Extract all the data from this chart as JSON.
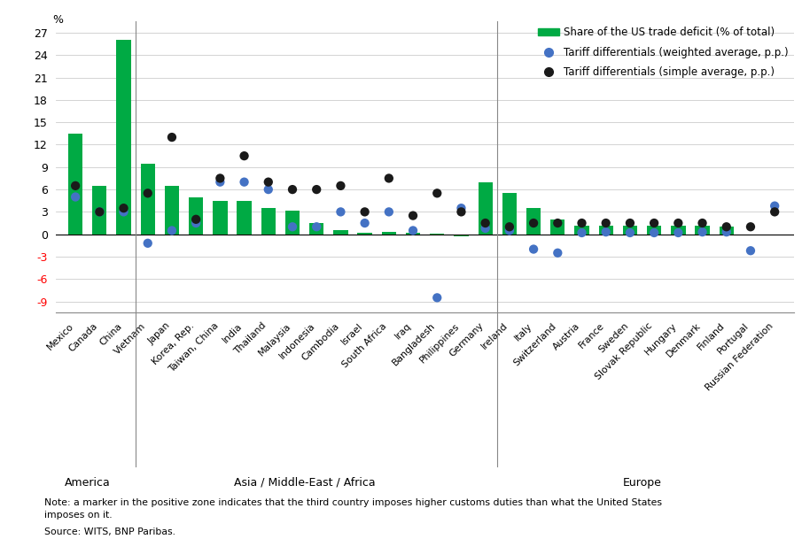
{
  "countries": [
    "Mexico",
    "Canada",
    "China",
    "Vietnam",
    "Japan",
    "Korea, Rep.",
    "Taiwan, China",
    "India",
    "Thailand",
    "Malaysia",
    "Indonesia",
    "Cambodia",
    "Israel",
    "South Africa",
    "Iraq",
    "Bangladesh",
    "Philippines",
    "Germany",
    "Ireland",
    "Italy",
    "Switzerland",
    "Austria",
    "France",
    "Sweden",
    "Slovak Republic",
    "Hungary",
    "Denmark",
    "Finland",
    "Portugal",
    "Russian Federation"
  ],
  "bar_values": [
    13.5,
    6.5,
    26.0,
    9.5,
    6.5,
    5.0,
    4.5,
    4.5,
    3.5,
    3.2,
    1.5,
    0.5,
    0.2,
    0.3,
    0.15,
    0.1,
    -0.3,
    7.0,
    5.5,
    3.5,
    2.0,
    1.2,
    1.2,
    1.2,
    1.2,
    1.2,
    1.2,
    1.0,
    -0.2,
    -0.2
  ],
  "weighted_avg": [
    5.0,
    3.0,
    3.0,
    -1.2,
    0.5,
    1.5,
    7.0,
    7.0,
    6.0,
    1.0,
    1.0,
    3.0,
    1.5,
    3.0,
    0.5,
    -8.5,
    3.5,
    0.8,
    0.5,
    -2.0,
    -2.5,
    0.2,
    0.3,
    0.2,
    0.2,
    0.2,
    0.3,
    0.3,
    -2.2,
    3.8
  ],
  "simple_avg": [
    6.5,
    3.0,
    3.5,
    5.5,
    13.0,
    2.0,
    7.5,
    10.5,
    7.0,
    6.0,
    6.0,
    6.5,
    3.0,
    7.5,
    2.5,
    5.5,
    3.0,
    1.5,
    1.0,
    1.5,
    1.5,
    1.5,
    1.5,
    1.5,
    1.5,
    1.5,
    1.5,
    1.0,
    1.0,
    3.0
  ],
  "region_labels": [
    "America",
    "Asia / Middle-East / Africa",
    "Europe"
  ],
  "region_dividers": [
    2.5,
    17.5
  ],
  "bar_color": "#00aa44",
  "weighted_color": "#4472c4",
  "simple_color": "#1a1a1a",
  "note": "Note: a marker in the positive zone indicates that the third country imposes higher customs duties than what the United States\nimposes on it.",
  "source": "Source: WITS, BNP Paribas.",
  "ylabel": "%",
  "yticks": [
    -9,
    -6,
    -3,
    0,
    3,
    6,
    9,
    12,
    15,
    18,
    21,
    24,
    27
  ],
  "ylim": [
    -10.5,
    28.5
  ],
  "legend_labels": [
    "Share of the US trade deficit (% of total)",
    "Tariff differentials (weighted average, p.p.)",
    "Tariff differentials (simple average, p.p.)"
  ]
}
